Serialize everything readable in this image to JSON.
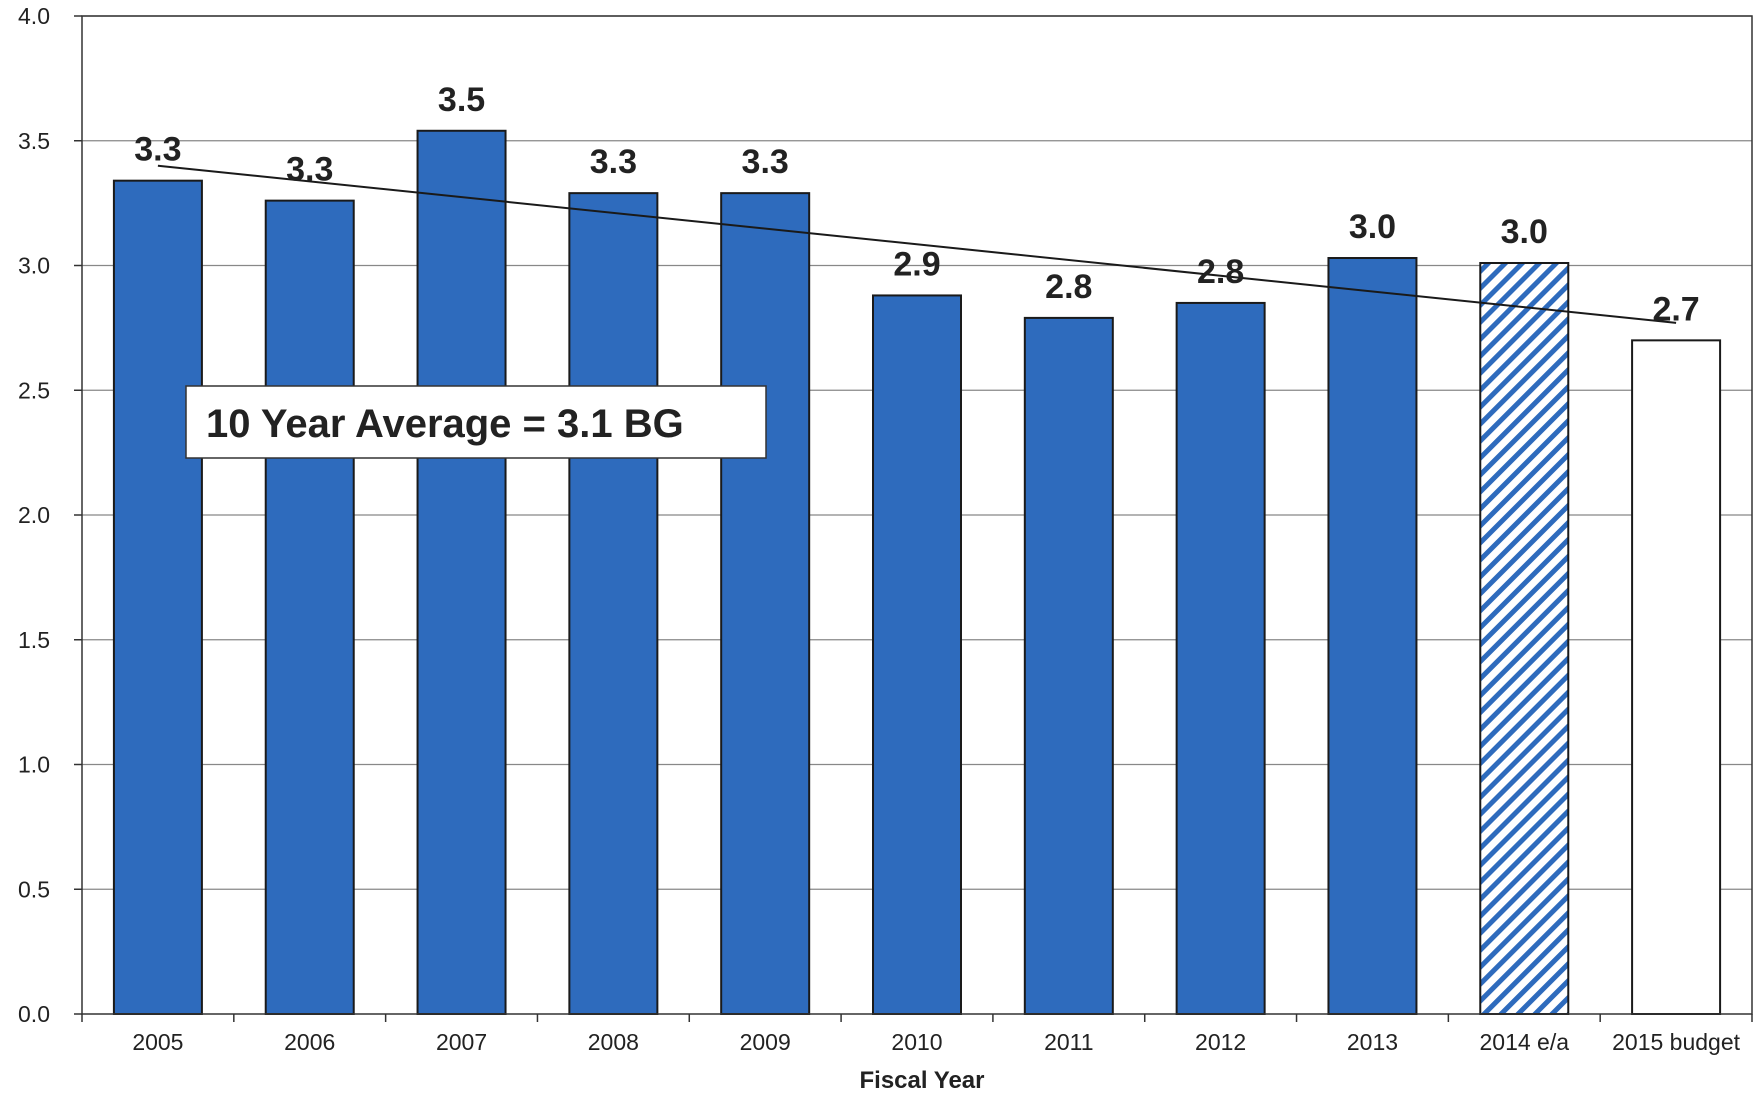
{
  "chart_data": {
    "type": "bar",
    "categories": [
      "2005",
      "2006",
      "2007",
      "2008",
      "2009",
      "2010",
      "2011",
      "2012",
      "2013",
      "2014 e/a",
      "2015 budget"
    ],
    "values": [
      3.34,
      3.26,
      3.54,
      3.29,
      3.29,
      2.88,
      2.79,
      2.85,
      3.03,
      3.01,
      2.7
    ],
    "data_labels": [
      "3.3",
      "3.3",
      "3.5",
      "3.3",
      "3.3",
      "2.9",
      "2.8",
      "2.8",
      "3.0",
      "3.0",
      "2.7"
    ],
    "bar_styles": [
      "solid",
      "solid",
      "solid",
      "solid",
      "solid",
      "solid",
      "solid",
      "solid",
      "solid",
      "hatched",
      "outline"
    ],
    "xlabel": "Fiscal Year",
    "ylabel": "",
    "ylim": [
      0,
      4
    ],
    "yticks": [
      "0.0",
      "0.5",
      "1.0",
      "1.5",
      "2.0",
      "2.5",
      "3.0",
      "3.5",
      "4.0"
    ],
    "grid": true,
    "trendline": {
      "start_value": 3.4,
      "end_value": 2.77
    },
    "annotation": "10 Year Average = 3.1 BG",
    "colors": {
      "bar": "#2e6bbd",
      "hatch": "#2e6bbd",
      "outline": "#222222",
      "grid": "#888888"
    }
  }
}
